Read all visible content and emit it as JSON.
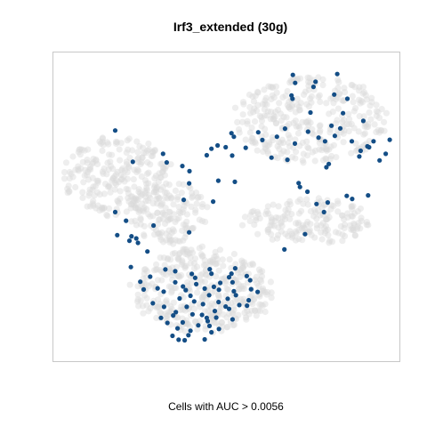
{
  "chart_data": {
    "type": "scatter",
    "title": "Irf3_extended (30g)",
    "xlabel": "Cells with AUC > 0.0056",
    "ylabel": "",
    "axes_visible": false,
    "grid": false,
    "legend": "none",
    "colors": {
      "background_cells": "#d9d9d9",
      "high_auc_cells": "#144e86",
      "frame": "#c8c8c8"
    },
    "xlim": [
      0,
      100
    ],
    "ylim": [
      0,
      100
    ],
    "regions": [
      {
        "name": "lower-lobe",
        "cx": 43,
        "cy": 22,
        "rx": 22,
        "ry": 15,
        "n_background": 380
      },
      {
        "name": "left-arm",
        "cx": 18,
        "cy": 60,
        "rx": 17,
        "ry": 14,
        "n_background": 240
      },
      {
        "name": "middle-bridge",
        "cx": 33,
        "cy": 48,
        "rx": 12,
        "ry": 11,
        "n_background": 140
      },
      {
        "name": "upper-right-cluster",
        "cx": 75,
        "cy": 79,
        "rx": 24,
        "ry": 15,
        "n_background": 320
      },
      {
        "name": "right-band",
        "cx": 74,
        "cy": 45,
        "rx": 20,
        "ry": 8,
        "n_background": 170
      }
    ],
    "highlighted": [
      [
        43.6,
        5.5
      ],
      [
        34.1,
        6.7
      ],
      [
        35.9,
        5.4
      ],
      [
        37.7,
        5.2
      ],
      [
        38.8,
        6.9
      ],
      [
        45.6,
        7.9
      ],
      [
        39.4,
        8.4
      ],
      [
        47.8,
        9.0
      ],
      [
        35.6,
        9.2
      ],
      [
        45.0,
        10.0
      ],
      [
        32.6,
        11.0
      ],
      [
        44.5,
        11.6
      ],
      [
        37.1,
        11.2
      ],
      [
        44.2,
        12.7
      ],
      [
        42.8,
        13.7
      ],
      [
        47.0,
        12.8
      ],
      [
        51.8,
        12.2
      ],
      [
        40.0,
        13.9
      ],
      [
        34.3,
        13.5
      ],
      [
        30.7,
        12.7
      ],
      [
        35.1,
        14.6
      ],
      [
        46.6,
        15.0
      ],
      [
        50.8,
        15.7
      ],
      [
        38.3,
        16.4
      ],
      [
        31.6,
        16.4
      ],
      [
        47.7,
        18.0
      ],
      [
        53.8,
        17.0
      ],
      [
        43.1,
        17.3
      ],
      [
        40.5,
        18.2
      ],
      [
        56.1,
        16.8
      ],
      [
        28.3,
        17.6
      ],
      [
        50.4,
        19.1
      ],
      [
        39.4,
        20.1
      ],
      [
        44.9,
        20.3
      ],
      [
        38.0,
        22.0
      ],
      [
        56.6,
        18.6
      ],
      [
        36.2,
        19.2
      ],
      [
        52.8,
        20.3
      ],
      [
        52.2,
        21.6
      ],
      [
        47.8,
        22.1
      ],
      [
        59.2,
        21.4
      ],
      [
        46.3,
        23.1
      ],
      [
        37.2,
        23.2
      ],
      [
        41.1,
        24.0
      ],
      [
        57.3,
        22.3
      ],
      [
        29.7,
        22.6
      ],
      [
        51.8,
        24.6
      ],
      [
        40.8,
        26.1
      ],
      [
        57.0,
        25.3
      ],
      [
        50.8,
        26.3
      ],
      [
        24.6,
        24.8
      ],
      [
        27.5,
        26.5
      ],
      [
        39.8,
        27.4
      ],
      [
        45.6,
        27.5
      ],
      [
        32.0,
        28.9
      ],
      [
        51.5,
        27.5
      ],
      [
        45.1,
        29.0
      ],
      [
        52.6,
        29.3
      ],
      [
        21.8,
        29.7
      ],
      [
        25.6,
        22.2
      ],
      [
        34.9,
        28.3
      ],
      [
        56.0,
        26.7
      ],
      [
        43.6,
        22.5
      ],
      [
        48.2,
        24.4
      ],
      [
        34.9,
        24.6
      ],
      [
        31.5,
        21.5
      ],
      [
        49.8,
        16.5
      ],
      [
        41.7,
        10.2
      ],
      [
        26.7,
        34.9
      ],
      [
        23.4,
        39.3
      ],
      [
        22.0,
        40.0
      ],
      [
        17.8,
        40.4
      ],
      [
        21.4,
        38.5
      ],
      [
        23.9,
        37.8
      ],
      [
        28.5,
        43.6
      ],
      [
        20.4,
        45.2
      ],
      [
        17.2,
        48.1
      ],
      [
        39.0,
        41.3
      ],
      [
        37.4,
        52.2
      ],
      [
        46.1,
        51.6
      ],
      [
        39.0,
        57.7
      ],
      [
        47.6,
        58.6
      ],
      [
        51.7,
        67.0
      ],
      [
        52.2,
        73.3
      ],
      [
        55.7,
        69.6
      ],
      [
        49.8,
        69.8
      ],
      [
        44.2,
        67.1
      ],
      [
        32.4,
        64.7
      ],
      [
        31.3,
        67.6
      ],
      [
        37.0,
        63.5
      ],
      [
        39.1,
        61.8
      ],
      [
        45.6,
        69.3
      ],
      [
        52.5,
        58.2
      ],
      [
        47.4,
        70.4
      ],
      [
        17.2,
        75.4
      ],
      [
        22.4,
        64.9
      ],
      [
        71.7,
        56.5
      ],
      [
        73.9,
        54.9
      ],
      [
        76.6,
        50.8
      ],
      [
        78.8,
        48.1
      ],
      [
        79.9,
        51.3
      ],
      [
        85.5,
        53.5
      ],
      [
        91.8,
        53.7
      ],
      [
        87.1,
        52.5
      ],
      [
        67.1,
        35.6
      ],
      [
        73.2,
        40.7
      ],
      [
        64.9,
        73.3
      ],
      [
        60.6,
        72.2
      ],
      [
        69.5,
        86.0
      ],
      [
        70.3,
        91.3
      ],
      [
        75.7,
        90.0
      ],
      [
        76.3,
        91.7
      ],
      [
        81.8,
        87.4
      ],
      [
        82.7,
        94.3
      ],
      [
        85.7,
        86.0
      ],
      [
        84.4,
        81.2
      ],
      [
        81.0,
        77.0
      ],
      [
        82.0,
        73.6
      ],
      [
        74.1,
        75.0
      ],
      [
        77.2,
        73.0
      ],
      [
        83.6,
        76.1
      ],
      [
        90.4,
        78.6
      ],
      [
        92.1,
        69.8
      ],
      [
        89.6,
        68.6
      ],
      [
        95.2,
        65.4
      ],
      [
        97.0,
        67.6
      ],
      [
        98.2,
        72.3
      ],
      [
        91.6,
        70.1
      ],
      [
        80.2,
        64.2
      ],
      [
        79.5,
        63.1
      ],
      [
        89.2,
        66.7
      ],
      [
        70.2,
        71.0
      ],
      [
        68.0,
        65.6
      ],
      [
        87.0,
        71.8
      ],
      [
        74.8,
        81.4
      ],
      [
        63.3,
        66.3
      ],
      [
        67.3,
        76.0
      ],
      [
        69.6,
        94.0
      ],
      [
        69.2,
        87.1
      ],
      [
        93.4,
        71.8
      ],
      [
        79.1,
        71.8
      ],
      [
        71.3,
        57.8
      ],
      [
        59.4,
        74.8
      ],
      [
        51.5,
        74.5
      ]
    ]
  }
}
